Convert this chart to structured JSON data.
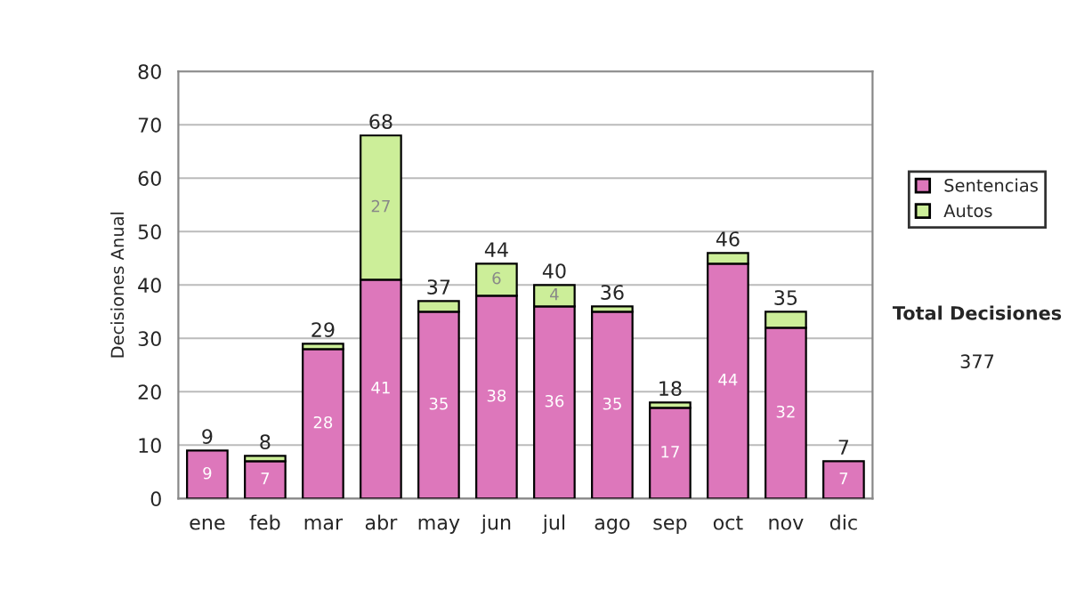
{
  "chart_data": {
    "type": "bar",
    "stacked": true,
    "ylabel": "Decisiones Anual",
    "categories": [
      "ene",
      "feb",
      "mar",
      "abr",
      "may",
      "jun",
      "jul",
      "ago",
      "sep",
      "oct",
      "nov",
      "dic"
    ],
    "series": [
      {
        "name": "Sentencias",
        "color": "#dd77bb",
        "values": [
          9,
          7,
          28,
          41,
          35,
          38,
          36,
          35,
          17,
          44,
          32,
          7
        ],
        "value_labels": [
          "9",
          "7",
          "28",
          "41",
          "35",
          "38",
          "36",
          "35",
          "17",
          "44",
          "32",
          "7"
        ]
      },
      {
        "name": "Autos",
        "color": "#ccee99",
        "values": [
          null,
          1,
          1,
          27,
          2,
          6,
          4,
          1,
          1,
          2,
          3,
          null
        ],
        "value_labels": [
          null,
          null,
          null,
          "27",
          null,
          "6",
          "4",
          null,
          null,
          null,
          null,
          null
        ]
      }
    ],
    "totals": [
      "9",
      "8",
      "29",
      "68",
      "37",
      "44",
      "40",
      "36",
      "18",
      "46",
      "35",
      "7"
    ],
    "ylim": [
      0,
      80
    ],
    "yticks": [
      0,
      10,
      20,
      30,
      40,
      50,
      60,
      70,
      80
    ],
    "grid": "y",
    "legend": "right",
    "annotations": [
      "Total Decisiones",
      "377"
    ]
  }
}
